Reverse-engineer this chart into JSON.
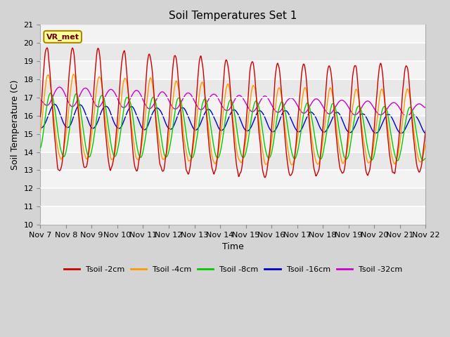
{
  "title": "Soil Temperatures Set 1",
  "xlabel": "Time",
  "ylabel": "Soil Temperature (C)",
  "ylim": [
    10.0,
    21.0
  ],
  "yticks": [
    10.0,
    11.0,
    12.0,
    13.0,
    14.0,
    15.0,
    16.0,
    17.0,
    18.0,
    19.0,
    20.0,
    21.0
  ],
  "plot_bg_color": "#e8e8e8",
  "fig_bg_color": "#d4d4d4",
  "series_colors": {
    "Tsoil -2cm": "#cc0000",
    "Tsoil -4cm": "#ff9900",
    "Tsoil -8cm": "#00cc00",
    "Tsoil -16cm": "#0000cc",
    "Tsoil -32cm": "#cc00cc"
  },
  "annotation_text": "VR_met",
  "annotation_facecolor": "#ffff99",
  "annotation_edgecolor": "#aa8800",
  "annotation_textcolor": "#660000",
  "n_days": 15,
  "start_day": 7,
  "line_width": 1.0
}
